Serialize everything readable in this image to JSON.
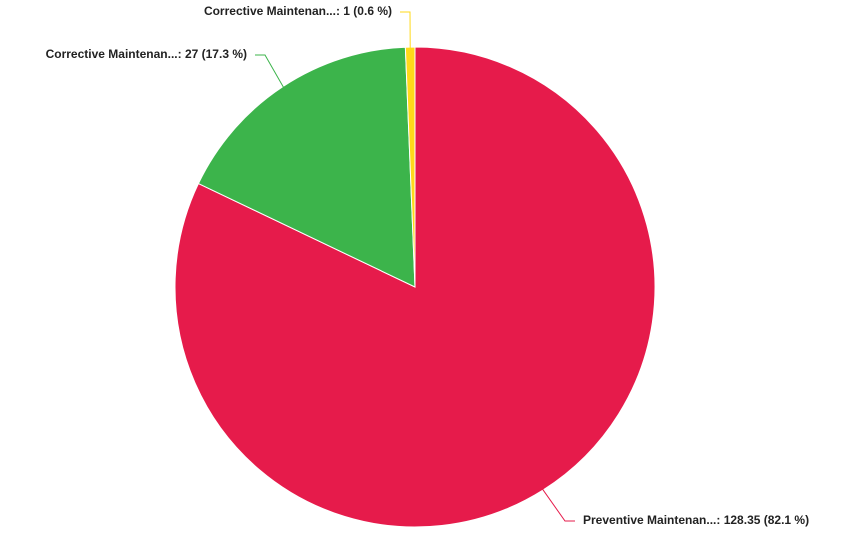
{
  "chart_data": {
    "type": "pie",
    "values": [
      128.35,
      27,
      1
    ],
    "value_labels": [
      "Preventive Maintenan...: 128.35 (82.1 %)",
      "Corrective Maintenan...: 27 (17.3 %)",
      "Corrective Maintenan...: 1 (0.6 %)"
    ],
    "colors": [
      "#e61b4b",
      "#3cb44b",
      "#ffd91a"
    ]
  }
}
